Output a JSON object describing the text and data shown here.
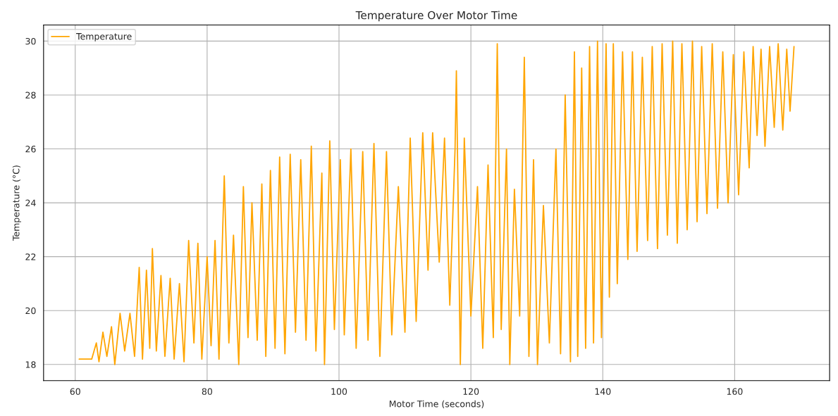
{
  "chart_data": {
    "type": "line",
    "title": "Temperature Over Motor Time",
    "xlabel": "Motor Time (seconds)",
    "ylabel": "Temperature (°C)",
    "xlim": [
      55.2,
      174.4
    ],
    "ylim": [
      17.4,
      30.6
    ],
    "xticks": [
      60,
      80,
      100,
      120,
      140,
      160
    ],
    "yticks": [
      18,
      20,
      22,
      24,
      26,
      28,
      30
    ],
    "grid": true,
    "legend": "top left",
    "series": [
      {
        "name": "Temperature",
        "color": "#ffa500",
        "x": [
          60.6,
          62.5,
          63.2,
          63.6,
          64.2,
          64.8,
          65.5,
          66,
          66.8,
          67.5,
          68.3,
          69,
          69.7,
          70.2,
          70.8,
          71.3,
          71.7,
          72.3,
          73,
          73.6,
          74.4,
          75,
          75.8,
          76.5,
          77.2,
          78,
          78.6,
          79.2,
          80,
          80.6,
          81.2,
          81.8,
          82.6,
          83.3,
          84,
          84.8,
          85.5,
          86.2,
          86.8,
          87.6,
          88.3,
          88.9,
          89.6,
          90.3,
          91,
          91.8,
          92.6,
          93.4,
          94.2,
          95,
          95.8,
          96.5,
          97.4,
          97.8,
          98.6,
          99.3,
          100.2,
          100.8,
          101.8,
          102.6,
          103.6,
          104.4,
          105.3,
          106.2,
          107.2,
          108,
          109,
          110,
          110.8,
          111.7,
          112.7,
          113.5,
          114.2,
          115.2,
          116,
          116.8,
          117.6,
          117.8,
          118.4,
          119,
          120,
          121,
          121.8,
          122.6,
          123.4,
          124,
          124.6,
          125.4,
          125.9,
          126.6,
          127.4,
          128.1,
          128.8,
          129.5,
          130.1,
          131,
          131.9,
          132.9,
          133.6,
          134.3,
          135.1,
          135.7,
          136.2,
          136.8,
          137.4,
          138,
          138.6,
          139.2,
          139.8,
          140.5,
          141,
          141.6,
          142.2,
          143,
          143.8,
          144.5,
          145.2,
          146,
          146.8,
          147.5,
          148.3,
          149,
          149.8,
          150.6,
          151.3,
          152,
          152.8,
          153.6,
          154.3,
          155,
          155.8,
          156.6,
          157.4,
          158.2,
          159,
          159.8,
          160.6,
          161.4,
          162.2,
          162.8,
          163.4,
          164,
          164.6,
          165.3,
          166,
          166.6,
          167.3,
          167.9,
          168.4,
          169
        ],
        "values": [
          18.2,
          18.2,
          18.8,
          18.1,
          19.2,
          18.3,
          19.4,
          18.0,
          19.9,
          18.5,
          19.9,
          18.3,
          21.6,
          18.2,
          21.5,
          18.6,
          22.3,
          18.5,
          21.3,
          18.3,
          21.2,
          18.2,
          21.0,
          18.1,
          22.6,
          18.8,
          22.5,
          18.2,
          22.0,
          18.7,
          22.6,
          18.2,
          25.0,
          18.8,
          22.8,
          18.0,
          24.6,
          19.0,
          24.0,
          18.9,
          24.7,
          18.3,
          25.2,
          18.6,
          25.7,
          18.4,
          25.8,
          19.2,
          25.6,
          18.9,
          26.1,
          18.5,
          25.1,
          18.0,
          26.3,
          19.3,
          25.6,
          19.1,
          26.0,
          18.6,
          25.9,
          18.9,
          26.2,
          18.3,
          25.9,
          19.1,
          24.6,
          19.2,
          26.4,
          19.6,
          26.6,
          21.5,
          26.6,
          21.8,
          26.4,
          20.2,
          26.0,
          28.9,
          18.0,
          26.4,
          19.8,
          24.6,
          18.6,
          25.4,
          19.0,
          29.9,
          19.3,
          26.0,
          18.0,
          24.5,
          19.8,
          29.4,
          18.3,
          25.6,
          18.0,
          23.9,
          18.8,
          26.0,
          18.4,
          28.0,
          18.1,
          29.6,
          18.3,
          29.0,
          18.6,
          29.8,
          18.8,
          30.0,
          19.0,
          29.9,
          20.5,
          29.9,
          21.0,
          29.6,
          21.9,
          29.6,
          22.2,
          29.4,
          22.6,
          29.8,
          22.3,
          29.9,
          22.8,
          30.0,
          22.5,
          29.9,
          23.0,
          30.0,
          23.3,
          29.8,
          23.6,
          29.9,
          23.8,
          29.6,
          24.0,
          29.5,
          24.3,
          29.6,
          25.3,
          29.8,
          26.5,
          29.7,
          26.1,
          29.8,
          26.8,
          29.9,
          26.7,
          29.7,
          27.4,
          29.8
        ]
      }
    ]
  }
}
